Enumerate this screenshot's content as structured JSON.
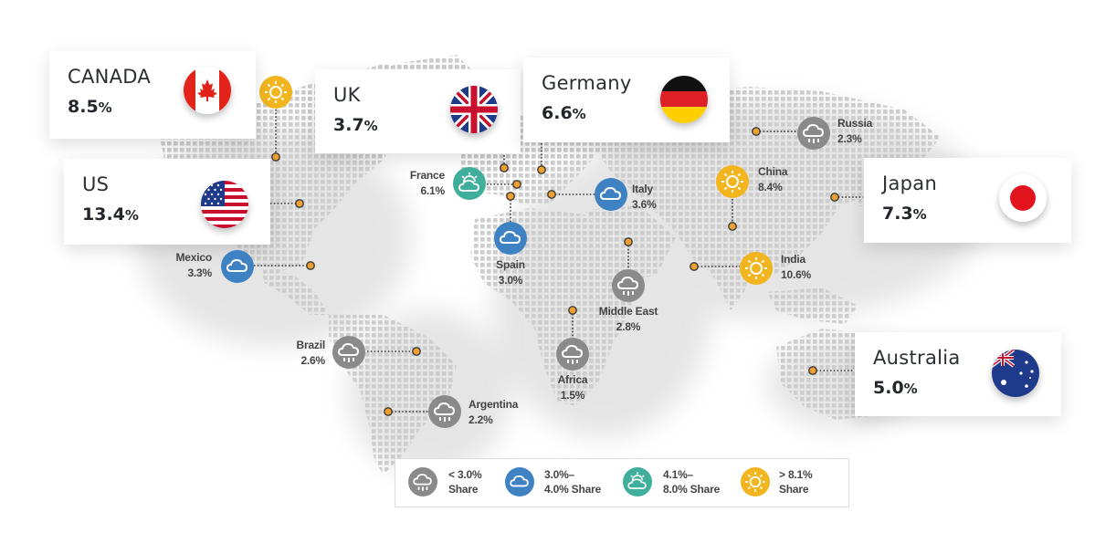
{
  "cards": [
    {
      "key": "canada",
      "name": "CANADA",
      "value": "8.5",
      "unit": "%"
    },
    {
      "key": "us",
      "name": "US",
      "value": "13.4",
      "unit": "%"
    },
    {
      "key": "uk",
      "name": "UK",
      "value": "3.7",
      "unit": "%"
    },
    {
      "key": "germany",
      "name": "Germany",
      "value": "6.6",
      "unit": "%"
    },
    {
      "key": "japan",
      "name": "Japan",
      "value": "7.3",
      "unit": "%"
    },
    {
      "key": "australia",
      "name": "Australia",
      "value": "5.0",
      "unit": "%"
    }
  ],
  "regions": [
    {
      "key": "mexico",
      "name": "Mexico",
      "value": "3.3%",
      "icon": "cloud-icon",
      "category": "blue"
    },
    {
      "key": "brazil",
      "name": "Brazil",
      "value": "2.6%",
      "icon": "rain-cloud-icon",
      "category": "gray"
    },
    {
      "key": "argentina",
      "name": "Argentina",
      "value": "2.2%",
      "icon": "rain-cloud-icon",
      "category": "gray"
    },
    {
      "key": "france",
      "name": "France",
      "value": "6.1%",
      "icon": "sun-cloud-icon",
      "category": "teal"
    },
    {
      "key": "spain",
      "name": "Spain",
      "value": "3.0%",
      "icon": "cloud-icon",
      "category": "blue"
    },
    {
      "key": "italy",
      "name": "Italy",
      "value": "3.6%",
      "icon": "cloud-icon",
      "category": "blue"
    },
    {
      "key": "africa",
      "name": "Africa",
      "value": "1.5%",
      "icon": "rain-cloud-icon",
      "category": "gray"
    },
    {
      "key": "middle_east",
      "name": "Middle East",
      "value": "2.8%",
      "icon": "rain-cloud-icon",
      "category": "gray"
    },
    {
      "key": "russia",
      "name": "Russia",
      "value": "2.3%",
      "icon": "rain-cloud-icon",
      "category": "gray"
    },
    {
      "key": "china",
      "name": "China",
      "value": "8.4%",
      "icon": "sun-icon",
      "category": "yellow"
    },
    {
      "key": "india",
      "name": "India",
      "value": "10.6%",
      "icon": "sun-icon",
      "category": "yellow"
    }
  ],
  "legend": [
    {
      "key": "gray",
      "label": "< 3.0%\nShare",
      "icon": "rain-cloud-icon"
    },
    {
      "key": "blue",
      "label": "3.0%–\n4.0% Share",
      "icon": "cloud-icon"
    },
    {
      "key": "teal",
      "label": "4.1%–\n8.0% Share",
      "icon": "sun-cloud-icon"
    },
    {
      "key": "yellow",
      "label": "> 8.1%\nShare",
      "icon": "sun-icon"
    }
  ],
  "colors": {
    "gray": "#8a8a8a",
    "blue": "#3f82c4",
    "teal": "#3fae9a",
    "yellow": "#f2b51e",
    "connector_dot": "#f0a030",
    "map_dots": "#c9c9c9"
  }
}
